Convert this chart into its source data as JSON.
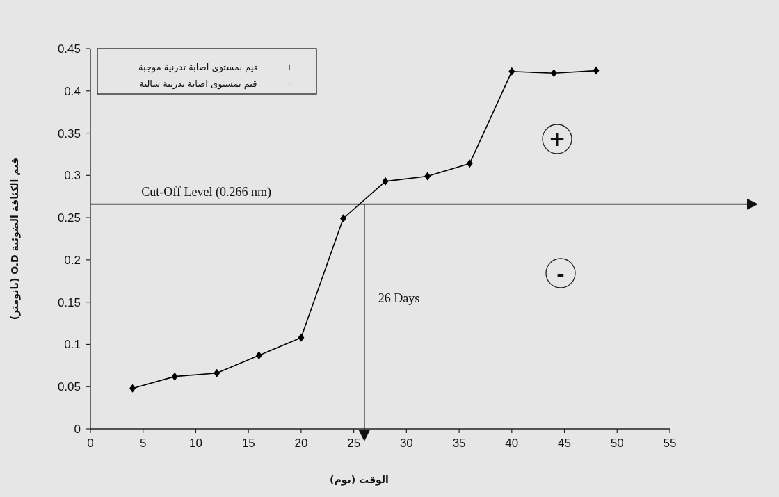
{
  "chart_data": {
    "type": "line",
    "xlabel": "الوقت (يوم)",
    "ylabel": "قيم الكثافة الضوئية O.D (نانومتر)",
    "x": [
      4,
      8,
      12,
      16,
      20,
      24,
      28,
      32,
      36,
      40,
      44,
      48
    ],
    "series": [
      {
        "color": "#000000",
        "values": [
          0.048,
          0.062,
          0.066,
          0.087,
          0.108,
          0.249,
          0.293,
          0.299,
          0.314,
          0.423,
          0.421,
          0.424
        ]
      }
    ],
    "xlim": [
      0,
      55
    ],
    "xticks": [
      0,
      5,
      10,
      15,
      20,
      25,
      30,
      35,
      40,
      45,
      50,
      55
    ],
    "ylim": [
      0,
      0.45
    ],
    "yticks": [
      0,
      0.05,
      0.1,
      0.15,
      0.2,
      0.25,
      0.3,
      0.35,
      0.4,
      0.45
    ],
    "marker": "diamond",
    "line_style": "solid",
    "ref_lines": [
      {
        "axis": "y",
        "value": 0.266,
        "label": "Cut-Off Level (0.266 nm)"
      },
      {
        "axis": "x",
        "value": 26,
        "label": "26 Days"
      }
    ],
    "annotations": [
      "قيم بمستوى اصابة تدرنية موجبة",
      "قيم بمستوى اصابة تدرنية سالبة",
      "+",
      "-"
    ]
  }
}
